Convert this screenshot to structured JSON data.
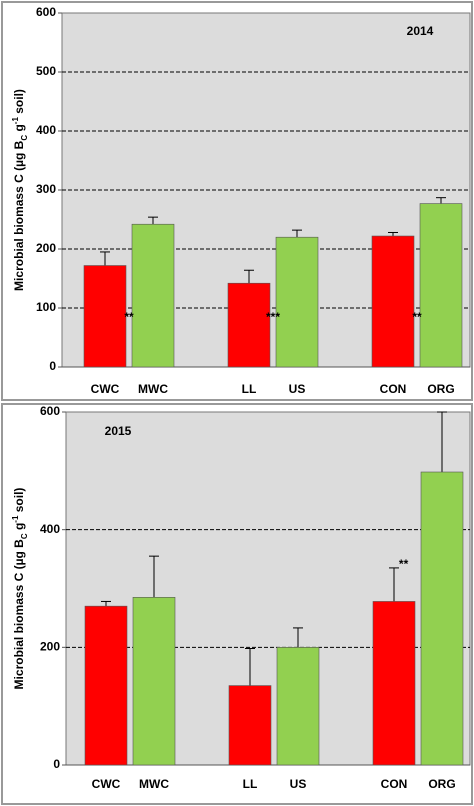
{
  "chart_data": [
    {
      "type": "bar",
      "label": "2014",
      "ylabel": [
        "Microbial biomass C (µg B",
        "C",
        " g",
        "-1",
        " soil)"
      ],
      "categories": [
        "CWC",
        "MWC",
        "LL",
        "US",
        "CON",
        "ORG"
      ],
      "values": [
        172,
        242,
        142,
        220,
        222,
        277
      ],
      "errors": [
        23,
        12,
        22,
        12,
        6,
        10
      ],
      "colors": [
        "#ff0000",
        "#92d050",
        "#ff0000",
        "#92d050",
        "#ff0000",
        "#92d050"
      ],
      "annotations": [
        "**",
        "***",
        "**"
      ],
      "ylim": [
        0,
        600
      ],
      "yticks": [
        0,
        100,
        200,
        300,
        400,
        500,
        600
      ],
      "grid": true
    },
    {
      "type": "bar",
      "label": "2015",
      "ylabel": [
        "Microbial biomass C (µg B",
        "C",
        " g",
        "-1",
        " soil)"
      ],
      "categories": [
        "CWC",
        "MWC",
        "LL",
        "US",
        "CON",
        "ORG"
      ],
      "values": [
        270,
        285,
        135,
        200,
        278,
        498
      ],
      "errors": [
        8,
        70,
        63,
        33,
        57,
        102
      ],
      "colors": [
        "#ff0000",
        "#92d050",
        "#ff0000",
        "#92d050",
        "#ff0000",
        "#92d050"
      ],
      "annotations": [
        "**"
      ],
      "ylim": [
        0,
        600
      ],
      "yticks": [
        0,
        200,
        400,
        600
      ],
      "grid": true
    }
  ]
}
